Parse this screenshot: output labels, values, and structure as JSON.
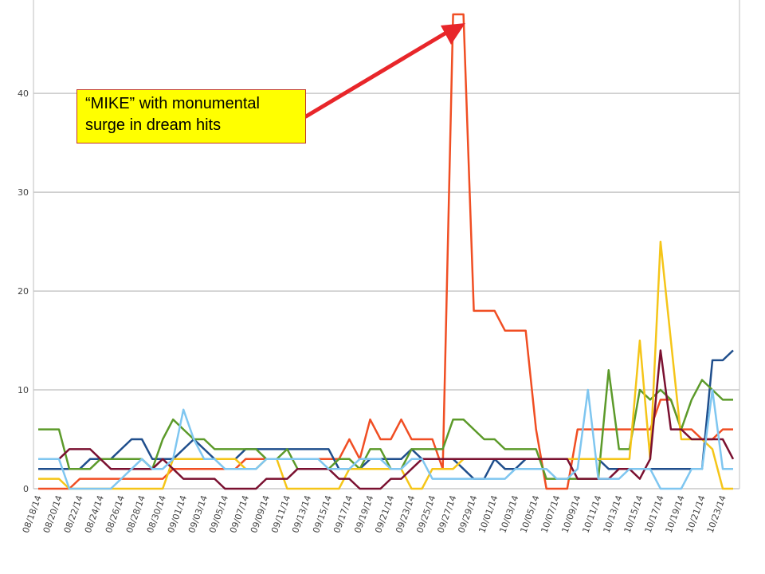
{
  "annotation": {
    "text_line1": "“MIKE” with monumental",
    "text_line2": "surge in dream hits",
    "arrow_color": "#e8262a",
    "box_color": "#ffff00"
  },
  "chart_data": {
    "type": "line",
    "title": "",
    "xlabel": "",
    "ylabel": "",
    "ylim": [
      0,
      48
    ],
    "yticks": [
      0,
      10,
      20,
      30,
      40
    ],
    "grid": true,
    "legend": "none",
    "x": [
      "08/18/14",
      "08/19/14",
      "08/20/14",
      "08/21/14",
      "08/22/14",
      "08/23/14",
      "08/24/14",
      "08/25/14",
      "08/26/14",
      "08/27/14",
      "08/28/14",
      "08/29/14",
      "08/30/14",
      "08/31/14",
      "09/01/14",
      "09/02/14",
      "09/03/14",
      "09/04/14",
      "09/05/14",
      "09/06/14",
      "09/07/14",
      "09/08/14",
      "09/09/14",
      "09/10/14",
      "09/11/14",
      "09/12/14",
      "09/13/14",
      "09/14/14",
      "09/15/14",
      "09/16/14",
      "09/17/14",
      "09/18/14",
      "09/19/14",
      "09/20/14",
      "09/21/14",
      "09/22/14",
      "09/23/14",
      "09/24/14",
      "09/25/14",
      "09/26/14",
      "09/27/14",
      "09/28/14",
      "09/29/14",
      "09/30/14",
      "10/01/14",
      "10/02/14",
      "10/03/14",
      "10/04/14",
      "10/05/14",
      "10/06/14",
      "10/07/14",
      "10/08/14",
      "10/09/14",
      "10/10/14",
      "10/11/14",
      "10/12/14",
      "10/13/14",
      "10/14/14",
      "10/15/14",
      "10/16/14",
      "10/17/14",
      "10/18/14",
      "10/19/14",
      "10/20/14",
      "10/21/14",
      "10/22/14",
      "10/23/14",
      "10/24/14"
    ],
    "x_tick_labels": [
      "08/18/14",
      "08/20/14",
      "08/22/14",
      "08/24/14",
      "08/26/14",
      "08/28/14",
      "08/30/14",
      "09/01/14",
      "09/03/14",
      "09/05/14",
      "09/07/14",
      "09/09/14",
      "09/11/14",
      "09/13/14",
      "09/15/14",
      "09/17/14",
      "09/19/14",
      "09/21/14",
      "09/23/14",
      "09/25/14",
      "09/27/14",
      "09/29/14",
      "10/01/14",
      "10/03/14",
      "10/05/14",
      "10/07/14",
      "10/09/14",
      "10/11/14",
      "10/13/14",
      "10/15/14",
      "10/17/14",
      "10/19/14",
      "10/21/14",
      "10/23/14"
    ],
    "series": [
      {
        "color": "#f04e23",
        "values": [
          0,
          0,
          0,
          0,
          1,
          1,
          1,
          1,
          1,
          1,
          1,
          1,
          1,
          2,
          2,
          2,
          2,
          2,
          2,
          2,
          3,
          3,
          3,
          3,
          3,
          3,
          3,
          3,
          3,
          3,
          5,
          3,
          7,
          5,
          5,
          7,
          5,
          5,
          5,
          2,
          48,
          48,
          18,
          18,
          18,
          16,
          16,
          16,
          6,
          0,
          0,
          0,
          6,
          6,
          6,
          6,
          6,
          6,
          6,
          6,
          9,
          9,
          6,
          6,
          5,
          5,
          6,
          6
        ]
      },
      {
        "color": "#1f4e8c",
        "values": [
          2,
          2,
          2,
          2,
          2,
          3,
          3,
          3,
          4,
          5,
          5,
          3,
          3,
          3,
          4,
          5,
          4,
          3,
          3,
          3,
          4,
          4,
          4,
          4,
          4,
          4,
          4,
          4,
          4,
          2,
          2,
          2,
          3,
          3,
          3,
          3,
          4,
          3,
          3,
          3,
          3,
          2,
          1,
          1,
          3,
          2,
          2,
          3,
          3,
          3,
          3,
          3,
          3,
          3,
          3,
          2,
          2,
          2,
          2,
          2,
          2,
          2,
          2,
          2,
          2,
          13,
          13,
          14
        ]
      },
      {
        "color": "#5c9a2a",
        "values": [
          6,
          6,
          6,
          2,
          2,
          2,
          3,
          3,
          3,
          3,
          3,
          2,
          5,
          7,
          6,
          5,
          5,
          4,
          4,
          4,
          4,
          4,
          3,
          3,
          4,
          2,
          2,
          2,
          2,
          3,
          3,
          2,
          4,
          4,
          2,
          2,
          4,
          4,
          4,
          4,
          7,
          7,
          6,
          5,
          5,
          4,
          4,
          4,
          4,
          1,
          1,
          1,
          1,
          1,
          1,
          12,
          4,
          4,
          10,
          9,
          10,
          9,
          6,
          9,
          11,
          10,
          9,
          9
        ]
      },
      {
        "color": "#f5c518",
        "values": [
          1,
          1,
          1,
          0,
          0,
          0,
          0,
          0,
          0,
          0,
          0,
          0,
          0,
          3,
          3,
          3,
          3,
          3,
          3,
          3,
          2,
          2,
          3,
          3,
          0,
          0,
          0,
          0,
          0,
          0,
          2,
          2,
          2,
          2,
          2,
          2,
          0,
          0,
          2,
          2,
          2,
          3,
          3,
          3,
          3,
          3,
          3,
          3,
          3,
          3,
          3,
          3,
          3,
          3,
          3,
          3,
          3,
          3,
          15,
          3,
          25,
          15,
          5,
          5,
          5,
          4,
          0,
          0
        ]
      },
      {
        "color": "#7a1030",
        "values": [
          3,
          3,
          3,
          4,
          4,
          4,
          3,
          2,
          2,
          2,
          2,
          2,
          3,
          2,
          1,
          1,
          1,
          1,
          0,
          0,
          0,
          0,
          1,
          1,
          1,
          2,
          2,
          2,
          2,
          1,
          1,
          0,
          0,
          0,
          1,
          1,
          2,
          3,
          3,
          3,
          3,
          3,
          3,
          3,
          3,
          3,
          3,
          3,
          3,
          3,
          3,
          3,
          1,
          1,
          1,
          1,
          2,
          2,
          1,
          3,
          14,
          6,
          6,
          5,
          5,
          5,
          5,
          3
        ]
      },
      {
        "color": "#7fc6f0",
        "values": [
          3,
          3,
          3,
          0,
          0,
          0,
          0,
          0,
          1,
          2,
          3,
          2,
          2,
          3,
          8,
          5,
          3,
          3,
          2,
          2,
          2,
          2,
          3,
          3,
          3,
          3,
          3,
          3,
          2,
          2,
          2,
          3,
          3,
          3,
          2,
          2,
          3,
          3,
          1,
          1,
          1,
          1,
          1,
          1,
          1,
          1,
          2,
          2,
          2,
          2,
          1,
          1,
          2,
          10,
          1,
          1,
          1,
          2,
          2,
          2,
          0,
          0,
          0,
          2,
          2,
          10,
          2,
          2
        ]
      }
    ]
  }
}
